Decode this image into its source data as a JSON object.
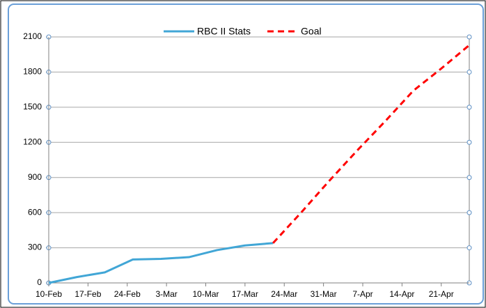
{
  "chart_data": {
    "type": "line",
    "series": [
      {
        "name": "RBC II Stats",
        "color": "#41a6d6",
        "dashed": false,
        "x": [
          0,
          5,
          10,
          15,
          20,
          25,
          30,
          35,
          40
        ],
        "values": [
          0,
          50,
          90,
          200,
          205,
          220,
          280,
          320,
          340
        ]
      },
      {
        "name": "Goal",
        "color": "#ff0000",
        "dashed": true,
        "x": [
          40,
          45,
          50,
          55,
          60,
          65,
          70,
          75
        ],
        "values": [
          340,
          600,
          870,
          1130,
          1380,
          1640,
          1830,
          2030
        ]
      }
    ],
    "xlim": [
      0,
      75
    ],
    "xticks": [
      {
        "value": 0,
        "label": "10-Feb"
      },
      {
        "value": 7,
        "label": "17-Feb"
      },
      {
        "value": 14,
        "label": "24-Feb"
      },
      {
        "value": 21,
        "label": "3-Mar"
      },
      {
        "value": 28,
        "label": "10-Mar"
      },
      {
        "value": 35,
        "label": "17-Mar"
      },
      {
        "value": 42,
        "label": "24-Mar"
      },
      {
        "value": 49,
        "label": "31-Mar"
      },
      {
        "value": 56,
        "label": "7-Apr"
      },
      {
        "value": 63,
        "label": "14-Apr"
      },
      {
        "value": 70,
        "label": "21-Apr"
      }
    ],
    "ylim": [
      0,
      2100
    ],
    "yticks": [
      0,
      300,
      600,
      900,
      1200,
      1500,
      1800,
      2100
    ],
    "grid": true,
    "legend": "top"
  }
}
